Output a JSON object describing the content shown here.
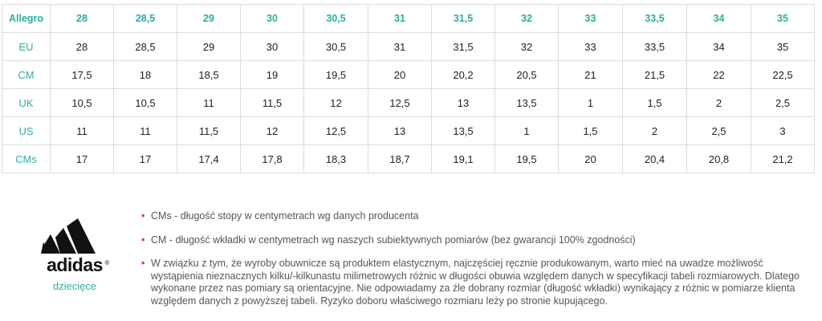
{
  "table": {
    "rows": [
      {
        "label": "Allegro",
        "cells": [
          "28",
          "28,5",
          "29",
          "30",
          "30,5",
          "31",
          "31,5",
          "32",
          "33",
          "33,5",
          "34",
          "35"
        ]
      },
      {
        "label": "EU",
        "cells": [
          "28",
          "28,5",
          "29",
          "30",
          "30,5",
          "31",
          "31,5",
          "32",
          "33",
          "33,5",
          "34",
          "35"
        ]
      },
      {
        "label": "CM",
        "cells": [
          "17,5",
          "18",
          "18,5",
          "19",
          "19,5",
          "20",
          "20,2",
          "20,5",
          "21",
          "21,5",
          "22",
          "22,5"
        ]
      },
      {
        "label": "UK",
        "cells": [
          "10,5",
          "10,5",
          "11",
          "11,5",
          "12",
          "12,5",
          "13",
          "13,5",
          "1",
          "1,5",
          "2",
          "2,5"
        ]
      },
      {
        "label": "US",
        "cells": [
          "11",
          "11",
          "11,5",
          "12",
          "12,5",
          "13",
          "13,5",
          "1",
          "1,5",
          "2",
          "2,5",
          "3"
        ]
      },
      {
        "label": "CMs",
        "cells": [
          "17",
          "17",
          "17,4",
          "17,8",
          "18,3",
          "18,7",
          "19,1",
          "19,5",
          "20",
          "20,4",
          "20,8",
          "21,2"
        ]
      }
    ]
  },
  "brand": {
    "name": "adidas",
    "reg_mark": "®",
    "category": "dziecięce",
    "logo_icon": "adidas-performance-logo-icon"
  },
  "notes": [
    {
      "bullet": "•",
      "text": "CMs - długość stopy w centymetrach wg danych producenta"
    },
    {
      "bullet": "•",
      "text": "CM - długość wkładki w centymetrach wg naszych subiektywnych pomiarów (bez gwarancji 100% zgodności)"
    },
    {
      "bullet": "•",
      "text": "W związku z tym, że wyroby obuwnicze są produktem elastycznym, najczęściej ręcznie produkowanym, warto mieć na uwadze możliwość wystąpienia nieznacznych kilku/-kilkunastu milimetrowych różnic w długości obuwia względem danych w specyfikacji tabeli rozmiarowych. Dlatego wykonane przez nas pomiary są orientacyjne. Nie odpowiadamy za źle dobrany rozmiar (długość wkładki) wynikający z różnic w pomiarze klienta względem danych z powyższej tabeli. Ryzyko doboru właściwego rozmiaru leży po stronie kupującego."
    }
  ],
  "colors": {
    "accent": "#2fae9e",
    "bullet": "#e3413f",
    "border": "#dcdcdc"
  }
}
